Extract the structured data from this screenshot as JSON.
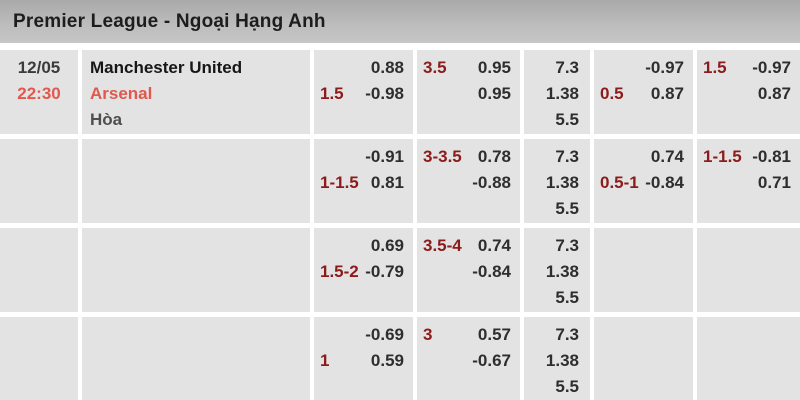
{
  "header": {
    "title": "Premier League - Ngoại Hạng Anh"
  },
  "match": {
    "date": "12/05",
    "time": "22:30",
    "home_team": "Manchester United",
    "away_team": "Arsenal",
    "draw_label": "Hòa"
  },
  "colors": {
    "handicap_red": "#8c1b1b",
    "team_time_red": "#e0584e",
    "odds_text": "#2e2e2e",
    "cell_bg": "#e3e3e3",
    "header_bg": "#b4b4b4"
  },
  "rows": [
    {
      "cells": [
        {
          "l1h": "",
          "l1o": "0.88",
          "l2h": "1.5",
          "l2o": "-0.98"
        },
        {
          "l1h": "3.5",
          "l1o": "0.95",
          "l2h": "",
          "l2o": "0.95"
        },
        {
          "v1": "7.3",
          "v2": "1.38",
          "v3": "5.5"
        },
        {
          "l1h": "",
          "l1o": "-0.97",
          "l2h": "0.5",
          "l2o": "0.87"
        },
        {
          "l1h": "1.5",
          "l1o": "-0.97",
          "l2h": "",
          "l2o": "0.87"
        }
      ]
    },
    {
      "cells": [
        {
          "l1h": "",
          "l1o": "-0.91",
          "l2h": "1-1.5",
          "l2o": "0.81"
        },
        {
          "l1h": "3-3.5",
          "l1o": "0.78",
          "l2h": "",
          "l2o": "-0.88"
        },
        {
          "v1": "7.3",
          "v2": "1.38",
          "v3": "5.5"
        },
        {
          "l1h": "",
          "l1o": "0.74",
          "l2h": "0.5-1",
          "l2o": "-0.84"
        },
        {
          "l1h": "1-1.5",
          "l1o": "-0.81",
          "l2h": "",
          "l2o": "0.71"
        }
      ]
    },
    {
      "cells": [
        {
          "l1h": "",
          "l1o": "0.69",
          "l2h": "1.5-2",
          "l2o": "-0.79"
        },
        {
          "l1h": "3.5-4",
          "l1o": "0.74",
          "l2h": "",
          "l2o": "-0.84"
        },
        {
          "v1": "7.3",
          "v2": "1.38",
          "v3": "5.5"
        },
        {
          "l1h": "",
          "l1o": "",
          "l2h": "",
          "l2o": ""
        },
        {
          "l1h": "",
          "l1o": "",
          "l2h": "",
          "l2o": ""
        }
      ]
    },
    {
      "cells": [
        {
          "l1h": "",
          "l1o": "-0.69",
          "l2h": "1",
          "l2o": "0.59"
        },
        {
          "l1h": "3",
          "l1o": "0.57",
          "l2h": "",
          "l2o": "-0.67"
        },
        {
          "v1": "7.3",
          "v2": "1.38",
          "v3": "5.5"
        },
        {
          "l1h": "",
          "l1o": "",
          "l2h": "",
          "l2o": ""
        },
        {
          "l1h": "",
          "l1o": "",
          "l2h": "",
          "l2o": ""
        }
      ]
    }
  ]
}
